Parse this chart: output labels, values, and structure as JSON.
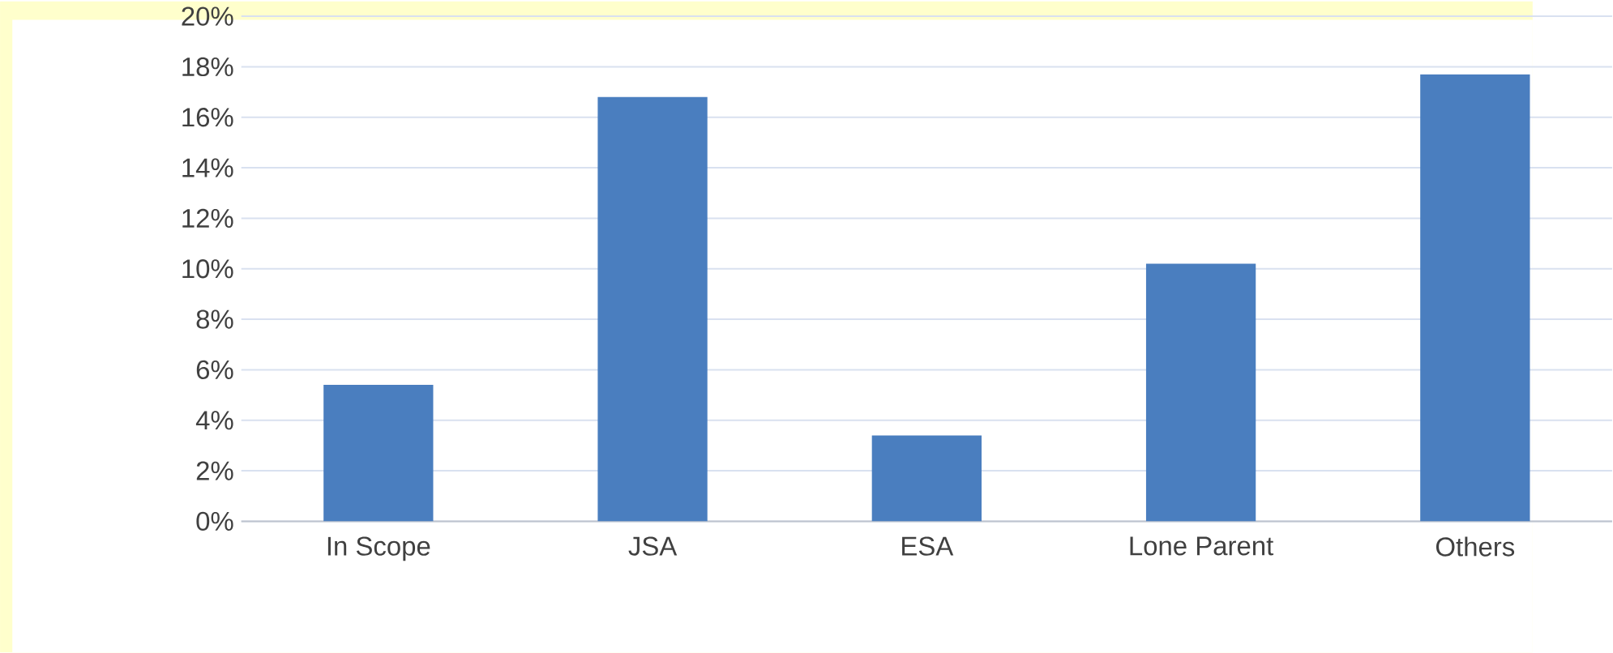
{
  "chart_data": {
    "type": "bar",
    "categories": [
      "In Scope",
      "JSA",
      "ESA",
      "Lone Parent",
      "Others"
    ],
    "values": [
      5.4,
      16.8,
      3.4,
      10.2,
      17.7
    ],
    "color": "#4a7ebf",
    "ylim": [
      0,
      20
    ],
    "yticks": [
      {
        "value": 0,
        "label": "0%"
      },
      {
        "value": 2,
        "label": "2%"
      },
      {
        "value": 4,
        "label": "4%"
      },
      {
        "value": 6,
        "label": "6%"
      },
      {
        "value": 8,
        "label": "8%"
      },
      {
        "value": 10,
        "label": "10%"
      },
      {
        "value": 12,
        "label": "12%"
      },
      {
        "value": 14,
        "label": "14%"
      },
      {
        "value": 16,
        "label": "16%"
      },
      {
        "value": 18,
        "label": "18%"
      },
      {
        "value": 20,
        "label": "20%"
      }
    ],
    "grid": "y"
  }
}
